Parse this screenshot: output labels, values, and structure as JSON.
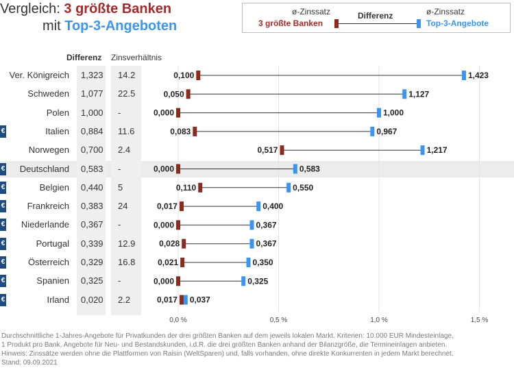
{
  "title": {
    "prefix": "Vergleich: ",
    "highlight_red": "3 größte Banken",
    "line2_prefix": "mit ",
    "highlight_blue": "Top-3-Angeboten"
  },
  "legend": {
    "left_top": "ø-Zinssatz",
    "left_bottom": "3 größte Banken",
    "middle": "Differenz",
    "right_top": "ø-Zinssatz",
    "right_bottom": "Top-3-Angebote"
  },
  "columns": {
    "differenz": "Differenz",
    "zinsverhaeltnis": "Zinsverhältnis"
  },
  "colors": {
    "red": "#8b2a1d",
    "blue": "#3b95ee",
    "euro_badge": "#1e4d84",
    "highlight_row": "#ececec"
  },
  "chart_data": {
    "type": "dumbbell",
    "xlim": [
      0,
      1.5
    ],
    "x_ticks": [
      "0,0 %",
      "0,5 %",
      "1,0 %",
      "1,5 %"
    ],
    "x_tick_values": [
      0,
      0.5,
      1.0,
      1.5
    ],
    "series": [
      {
        "name": "3 größte Banken",
        "color": "#8b2a1d"
      },
      {
        "name": "Top-3-Angebote",
        "color": "#3b95ee"
      }
    ],
    "rows": [
      {
        "country": "Ver. Königreich",
        "euro": false,
        "highlight": false,
        "diff": "1,323",
        "ratio": "14.2",
        "big3": 0.1,
        "big3_label": "0,100",
        "top3": 1.423,
        "top3_label": "1,423"
      },
      {
        "country": "Schweden",
        "euro": false,
        "highlight": false,
        "diff": "1,077",
        "ratio": "22.5",
        "big3": 0.05,
        "big3_label": "0,050",
        "top3": 1.127,
        "top3_label": "1,127"
      },
      {
        "country": "Polen",
        "euro": false,
        "highlight": false,
        "diff": "1,000",
        "ratio": "-",
        "big3": 0.0,
        "big3_label": "0,000",
        "top3": 1.0,
        "top3_label": "1,000"
      },
      {
        "country": "Italien",
        "euro": true,
        "highlight": false,
        "diff": "0,884",
        "ratio": "11.6",
        "big3": 0.083,
        "big3_label": "0,083",
        "top3": 0.967,
        "top3_label": "0,967"
      },
      {
        "country": "Norwegen",
        "euro": false,
        "highlight": false,
        "diff": "0,700",
        "ratio": "2.4",
        "big3": 0.517,
        "big3_label": "0,517",
        "top3": 1.217,
        "top3_label": "1,217"
      },
      {
        "country": "Deutschland",
        "euro": true,
        "highlight": true,
        "diff": "0,583",
        "ratio": "-",
        "big3": 0.0,
        "big3_label": "0,000",
        "top3": 0.583,
        "top3_label": "0,583"
      },
      {
        "country": "Belgien",
        "euro": true,
        "highlight": false,
        "diff": "0,440",
        "ratio": "5",
        "big3": 0.11,
        "big3_label": "0,110",
        "top3": 0.55,
        "top3_label": "0,550"
      },
      {
        "country": "Frankreich",
        "euro": true,
        "highlight": false,
        "diff": "0,383",
        "ratio": "24",
        "big3": 0.017,
        "big3_label": "0,017",
        "top3": 0.4,
        "top3_label": "0,400"
      },
      {
        "country": "Niederlande",
        "euro": true,
        "highlight": false,
        "diff": "0,367",
        "ratio": "-",
        "big3": 0.0,
        "big3_label": "0,000",
        "top3": 0.367,
        "top3_label": "0,367"
      },
      {
        "country": "Portugal",
        "euro": true,
        "highlight": false,
        "diff": "0,339",
        "ratio": "12.9",
        "big3": 0.028,
        "big3_label": "0,028",
        "top3": 0.367,
        "top3_label": "0,367"
      },
      {
        "country": "Österreich",
        "euro": true,
        "highlight": false,
        "diff": "0,329",
        "ratio": "16.8",
        "big3": 0.021,
        "big3_label": "0,021",
        "top3": 0.35,
        "top3_label": "0,350"
      },
      {
        "country": "Spanien",
        "euro": true,
        "highlight": false,
        "diff": "0,325",
        "ratio": "-",
        "big3": 0.0,
        "big3_label": "0,000",
        "top3": 0.325,
        "top3_label": "0,325"
      },
      {
        "country": "Irland",
        "euro": true,
        "highlight": false,
        "diff": "0,020",
        "ratio": "2.2",
        "big3": 0.017,
        "big3_label": "0,017",
        "top3": 0.037,
        "top3_label": "0,037"
      }
    ]
  },
  "euro_symbol": "€",
  "footer": [
    "Durchschnittliche 1-Jahres-Angebote für Privatkunden der drei größten Banken auf dem jeweils lokalen Markt. Kriterien: 10.000 EUR Mindesteinlage,",
    "1 Produkt pro Bank, Angebote für Neu- und Bestandskunden, i.d.R. die drei größten Banken anhand der Bilanzgröße, die Termineinlagen anbieten.",
    "Hinweis: Zinssätze werden ohne die Plattformen von Raisin (WeltSparen) und, falls vorhanden, ohne direkte Konkurrenten in jedem Markt berechnet.",
    "Stand: 09.09.2021"
  ]
}
